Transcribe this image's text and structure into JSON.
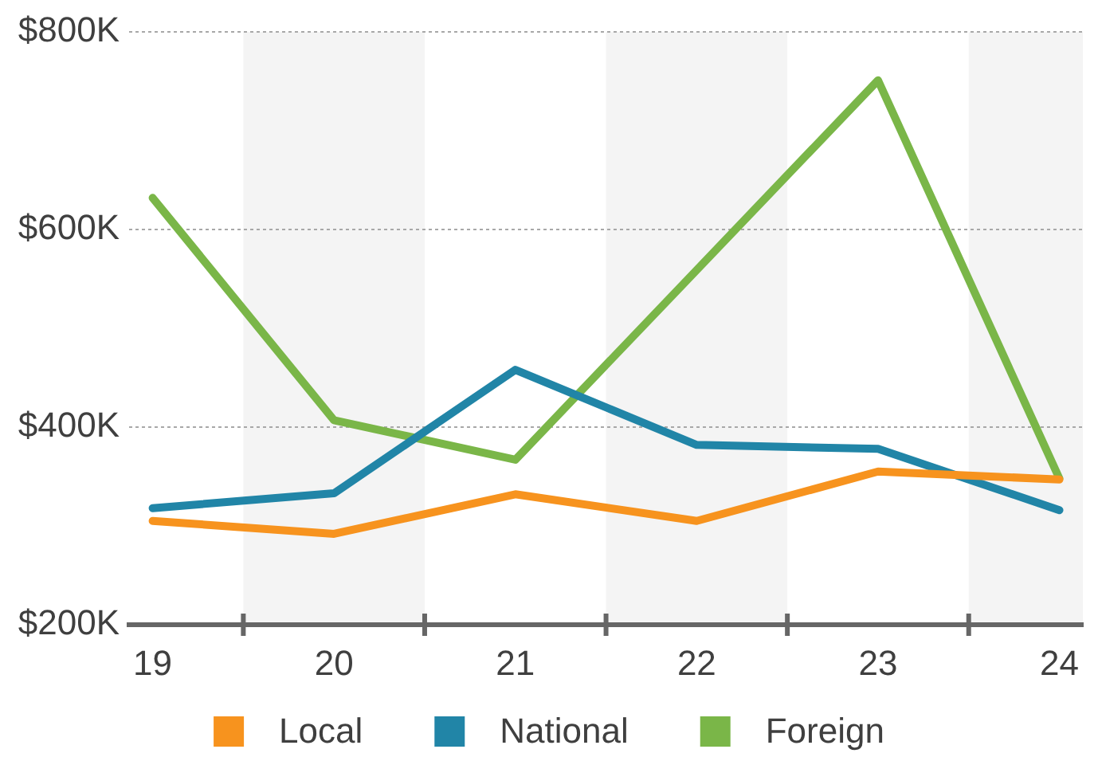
{
  "chart_data": {
    "type": "line",
    "x": [
      19,
      20,
      21,
      22,
      23,
      24
    ],
    "series": [
      {
        "name": "Local",
        "color": "#f7931e",
        "values": [
          305,
          292,
          332,
          305,
          355,
          347
        ]
      },
      {
        "name": "National",
        "color": "#2185a7",
        "values": [
          318,
          333,
          458,
          382,
          378,
          316
        ]
      },
      {
        "name": "Foreign",
        "color": "#7ab648",
        "values": [
          632,
          407,
          367,
          559,
          751,
          348
        ]
      }
    ],
    "xlim": [
      18.87,
      24.13
    ],
    "xticks": [
      {
        "value": 19,
        "label": "19"
      },
      {
        "value": 19.5,
        "label": null
      },
      {
        "value": 20,
        "label": "20"
      },
      {
        "value": 20.5,
        "label": null
      },
      {
        "value": 21,
        "label": "21"
      },
      {
        "value": 21.5,
        "label": null
      },
      {
        "value": 22,
        "label": "22"
      },
      {
        "value": 22.5,
        "label": null
      },
      {
        "value": 23,
        "label": "23"
      },
      {
        "value": 23.5,
        "label": null
      },
      {
        "value": 24,
        "label": "24"
      }
    ],
    "ylim": [
      200,
      800
    ],
    "yticks": [
      {
        "value": 200,
        "label": "$200K"
      },
      {
        "value": 400,
        "label": "$400K"
      },
      {
        "value": 600,
        "label": "$600K"
      },
      {
        "value": 800,
        "label": "$800K"
      }
    ],
    "grid": "y",
    "legend": "bottom",
    "marker": "none",
    "bands": [
      {
        "axis": "x",
        "from": 19.5,
        "to": 20.5,
        "color": "#f4f4f4"
      },
      {
        "axis": "x",
        "from": 21.5,
        "to": 22.5,
        "color": "#f4f4f4"
      },
      {
        "axis": "x",
        "from": 23.5,
        "to": 24.13,
        "color": "#f4f4f4"
      }
    ]
  }
}
